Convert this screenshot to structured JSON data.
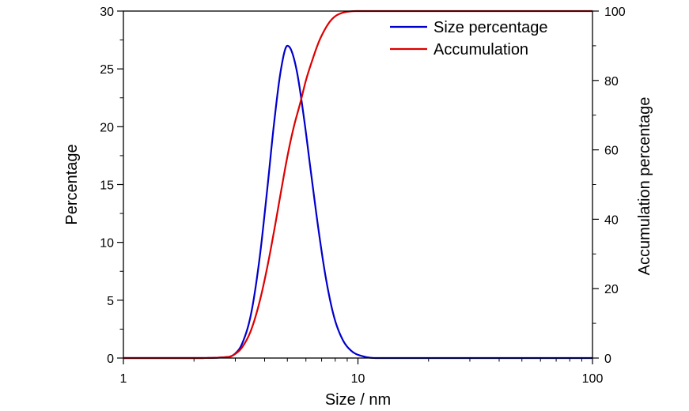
{
  "chart_data": {
    "type": "line",
    "xlabel": "Size / nm",
    "ylabel": "Percentage",
    "y2label": "Accumulation percentage",
    "xscale": "log",
    "xlim": [
      1,
      100
    ],
    "ylim": [
      0,
      30
    ],
    "y2lim": [
      0,
      100
    ],
    "xticks": [
      {
        "value": 1,
        "label": "1"
      },
      {
        "value": 10,
        "label": "10"
      },
      {
        "value": 100,
        "label": "100"
      }
    ],
    "yticks": [
      {
        "value": 0,
        "label": "0"
      },
      {
        "value": 5,
        "label": "5"
      },
      {
        "value": 10,
        "label": "10"
      },
      {
        "value": 15,
        "label": "15"
      },
      {
        "value": 20,
        "label": "20"
      },
      {
        "value": 25,
        "label": "25"
      },
      {
        "value": 30,
        "label": "30"
      }
    ],
    "y2ticks": [
      {
        "value": 0,
        "label": "0"
      },
      {
        "value": 20,
        "label": "20"
      },
      {
        "value": 40,
        "label": "40"
      },
      {
        "value": 60,
        "label": "60"
      },
      {
        "value": 80,
        "label": "80"
      },
      {
        "value": 100,
        "label": "100"
      }
    ],
    "grid": false,
    "legend_position": "top-right",
    "series": [
      {
        "name": "Size percentage",
        "axis": "left",
        "color": "#0000cc",
        "x": [
          1,
          2,
          2.8,
          3.0,
          3.2,
          3.5,
          3.8,
          4.1,
          4.4,
          4.7,
          5.0,
          5.2,
          5.5,
          5.9,
          6.3,
          6.8,
          7.3,
          7.9,
          8.6,
          9.4,
          10.5,
          12,
          20,
          50,
          100
        ],
        "y": [
          0,
          0,
          0.1,
          0.4,
          1.2,
          3.8,
          8.5,
          14.5,
          20.5,
          25.0,
          27.0,
          26.6,
          24.7,
          20.6,
          16.1,
          11.0,
          6.9,
          3.6,
          1.6,
          0.6,
          0.15,
          0,
          0,
          0,
          0
        ]
      },
      {
        "name": "Accumulation",
        "axis": "right",
        "color": "#dd0000",
        "x": [
          1,
          2,
          2.8,
          3.0,
          3.2,
          3.5,
          3.8,
          4.1,
          4.4,
          4.7,
          5.0,
          5.3,
          5.7,
          6.0,
          6.4,
          6.8,
          7.2,
          7.6,
          8.0,
          8.5,
          9.0,
          10,
          20,
          50,
          100
        ],
        "y": [
          0,
          0,
          0.3,
          1.2,
          3.0,
          8.0,
          16.0,
          26.0,
          37.0,
          48.0,
          58.0,
          66.0,
          74.0,
          80.0,
          86.0,
          91.0,
          94.5,
          97.0,
          98.5,
          99.4,
          99.8,
          100,
          100,
          100,
          100
        ]
      }
    ]
  }
}
